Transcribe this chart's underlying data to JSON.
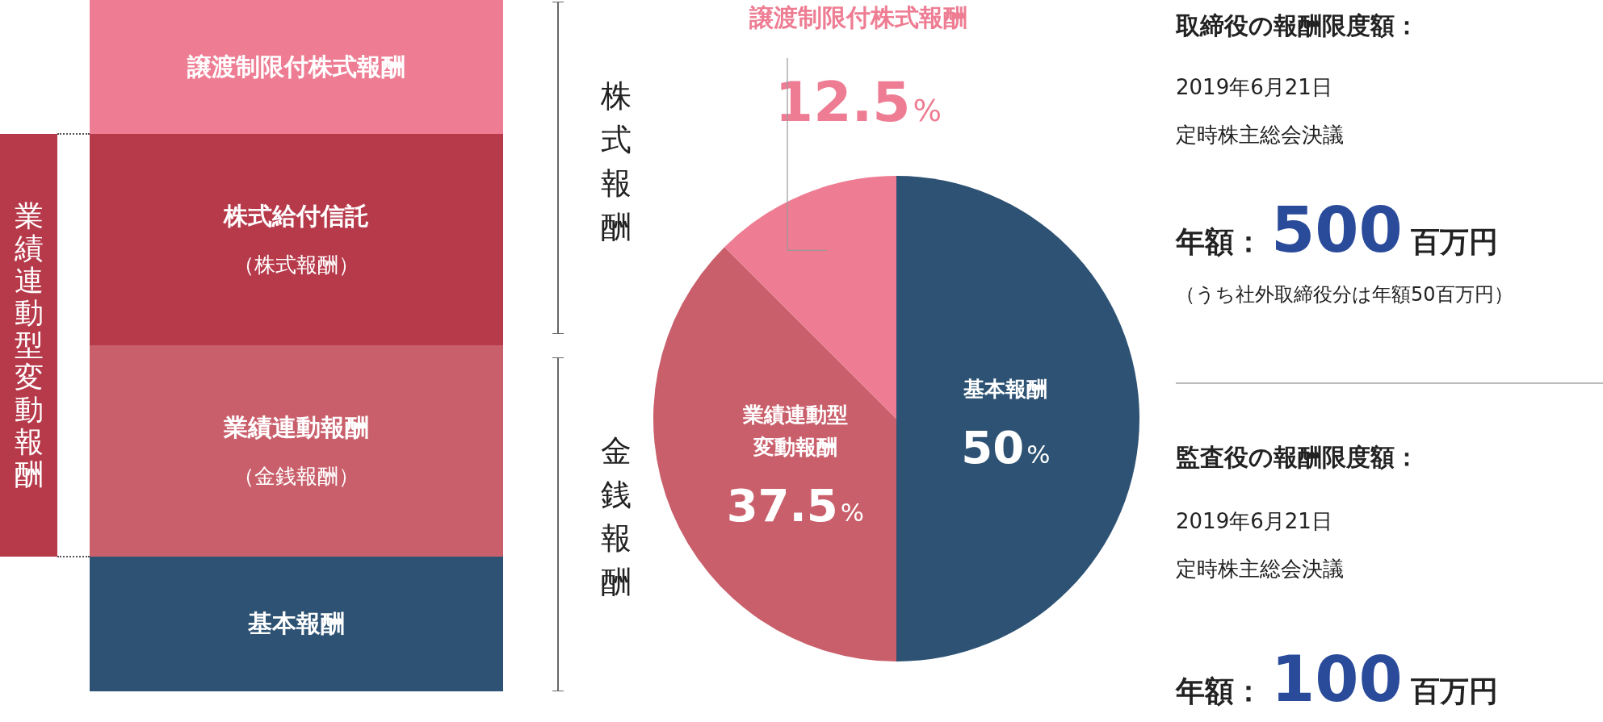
{
  "chart_data": {
    "type": "pie",
    "categories": [
      "基本報酬",
      "業績連動型変動報酬",
      "譲渡制限付株式報酬"
    ],
    "values": [
      50,
      37.5,
      12.5
    ],
    "colors": [
      "#2d5273",
      "#c95f6b",
      "#ee7d93"
    ],
    "value_labels": [
      "50%",
      "37.5%",
      "12.5%"
    ],
    "annotations": [
      "譲渡制限付株式報酬",
      "株式給付信託",
      "（株式報酬）",
      "業績連動報酬",
      "（金銭報酬）",
      "基本報酬",
      "業績連動型変動報酬",
      "株式報酬",
      "金銭報酬",
      "取締役の報酬限度額：",
      "2019年6月21日",
      "定時株主総会決議",
      "年額：500百万円",
      "（うち社外取締役分は年額50百万円）",
      "監査役の報酬限度額：",
      "2019年6月21日",
      "定時株主総会決議",
      "年額：100百万円"
    ]
  }
}
